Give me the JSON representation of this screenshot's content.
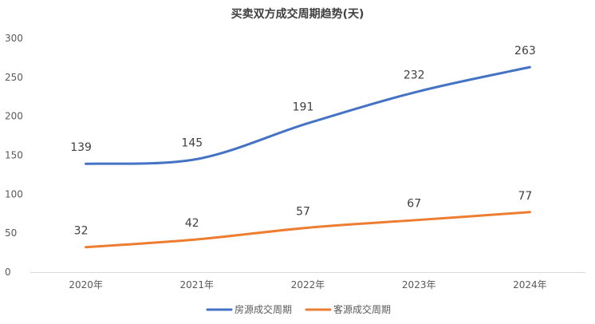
{
  "chart_data": {
    "type": "line",
    "title": "买卖双方成交周期趋势(天)",
    "categories": [
      "2020年",
      "2021年",
      "2022年",
      "2023年",
      "2024年"
    ],
    "series": [
      {
        "name": "房源成交周期",
        "values": [
          139,
          145,
          191,
          232,
          263
        ],
        "color": "#4472C4"
      },
      {
        "name": "客源成交周期",
        "values": [
          32,
          42,
          57,
          67,
          77
        ],
        "color": "#ED7D31"
      }
    ],
    "ylim": [
      0,
      300
    ],
    "yticks": [
      0,
      50,
      100,
      150,
      200,
      250,
      300
    ],
    "smooth": true,
    "grid": false,
    "legend_position": "bottom"
  }
}
